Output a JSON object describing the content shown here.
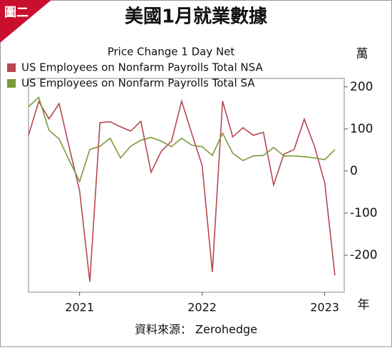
{
  "badge": "圖二",
  "chart_data": {
    "type": "line",
    "title": "美國1月就業數據",
    "subtitle": "Price Change 1 Day Net",
    "y_unit": "萬",
    "x_unit": "年",
    "source": "資料來源： Zerohedge",
    "categories": [
      null,
      null,
      null,
      null,
      null,
      "2021",
      null,
      null,
      null,
      null,
      null,
      null,
      null,
      null,
      null,
      null,
      null,
      "2022",
      null,
      null,
      null,
      null,
      null,
      null,
      null,
      null,
      null,
      null,
      null,
      "2023",
      null
    ],
    "series": [
      {
        "name": "US Employees on Nonfarm Payrolls Total NSA",
        "color": "#b5474f",
        "values": [
          85,
          165,
          124,
          160,
          55,
          -47,
          -263,
          115,
          117,
          105,
          95,
          118,
          -3,
          47,
          71,
          166,
          88,
          13,
          -240,
          166,
          81,
          103,
          85,
          92,
          -33,
          40,
          51,
          123,
          59,
          -28,
          -248
        ]
      },
      {
        "name": "US Employees on Nonfarm Payrolls Total SA",
        "color": "#7a9a3a",
        "values": [
          153,
          175,
          97,
          76,
          25,
          -25,
          51,
          59,
          78,
          31,
          59,
          73,
          80,
          71,
          58,
          78,
          61,
          58,
          37,
          90,
          42,
          25,
          36,
          37,
          56,
          36,
          36,
          34,
          31,
          27,
          51
        ]
      }
    ],
    "ylim": [
      -288,
      220
    ],
    "yticks": [
      -200,
      -100,
      0,
      100,
      200
    ],
    "grid": false
  }
}
